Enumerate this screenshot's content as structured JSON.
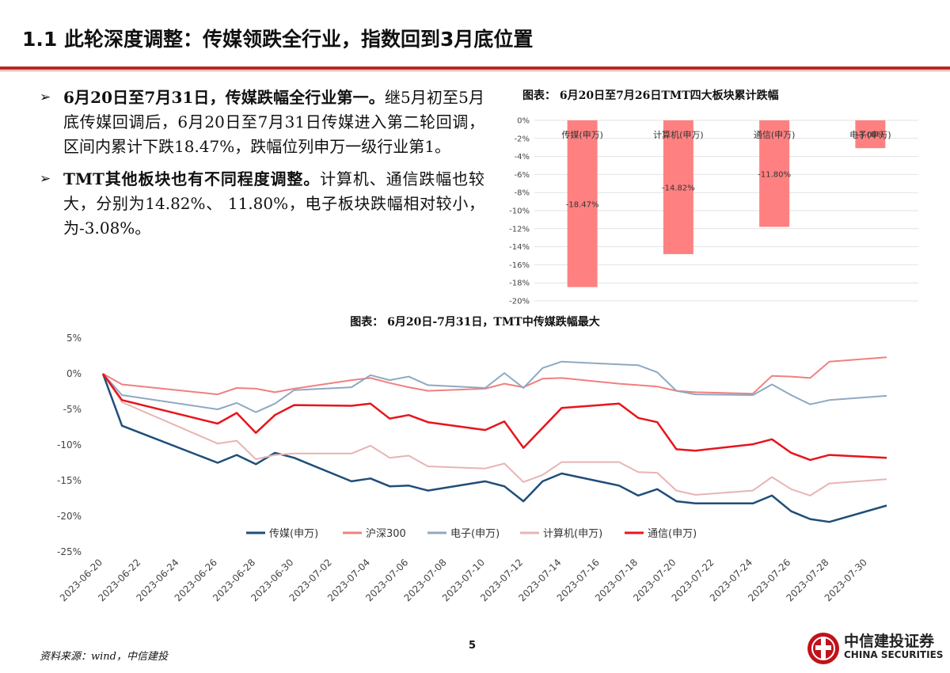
{
  "page": {
    "title": "1.1 此轮深度调整：传媒领跌全行业，指数回到3月底位置",
    "footer_source": "资料来源：wind，中信建投",
    "page_number": "5",
    "logo_cn": "中信建投证券",
    "logo_en": "CHINA SECURITIES",
    "brand_color": "#b22b25"
  },
  "bullets": [
    {
      "lead": "6月20日至7月31日，传媒跌幅全行业第一。",
      "body": "继5月初至5月底传媒回调后，6月20日至7月31日传媒进入第二轮回调，区间内累计下跌18.47%，跌幅位列申万一级行业第1。"
    },
    {
      "lead": "TMT其他板块也有不同程度调整。",
      "body": "计算机、通信跌幅也较大，分别为14.82%、 11.80%，电子板块跌幅相对较小，为-3.08%。"
    }
  ],
  "chart_data": [
    {
      "type": "bar",
      "title": "图表： 6月20日至7月26日TMT四大板块累计跌幅",
      "categories": [
        "传媒(申万)",
        "计算机(申万)",
        "通信(申万)",
        "电子(申万)"
      ],
      "values": [
        -18.47,
        -14.82,
        -11.8,
        -3.08
      ],
      "value_labels": [
        "-18.47%",
        "-14.82%",
        "-11.80%",
        "-3.08%"
      ],
      "ylim": [
        -20,
        0
      ],
      "yticks": [
        "0%",
        "-2%",
        "-4%",
        "-6%",
        "-8%",
        "-10%",
        "-12%",
        "-14%",
        "-16%",
        "-18%",
        "-20%"
      ],
      "bar_color": "#ff8080",
      "grid": true
    },
    {
      "type": "line",
      "title": "图表： 6月20日-7月31日，TMT中传媒跌幅最大",
      "x": [
        "2023-06-20",
        "2023-06-21",
        "2023-06-26",
        "2023-06-27",
        "2023-06-28",
        "2023-06-29",
        "2023-06-30",
        "2023-07-03",
        "2023-07-04",
        "2023-07-05",
        "2023-07-06",
        "2023-07-07",
        "2023-07-10",
        "2023-07-11",
        "2023-07-12",
        "2023-07-13",
        "2023-07-14",
        "2023-07-17",
        "2023-07-18",
        "2023-07-19",
        "2023-07-20",
        "2023-07-21",
        "2023-07-24",
        "2023-07-25",
        "2023-07-26",
        "2023-07-27",
        "2023-07-28",
        "2023-07-31"
      ],
      "xticks": [
        "2023-06-20",
        "2023-06-22",
        "2023-06-24",
        "2023-06-26",
        "2023-06-28",
        "2023-06-30",
        "2023-07-02",
        "2023-07-04",
        "2023-07-06",
        "2023-07-08",
        "2023-07-10",
        "2023-07-12",
        "2023-07-14",
        "2023-07-16",
        "2023-07-18",
        "2023-07-20",
        "2023-07-22",
        "2023-07-24",
        "2023-07-26",
        "2023-07-28",
        "2023-07-30"
      ],
      "yticks": [
        "5%",
        "0%",
        "-5%",
        "-10%",
        "-15%",
        "-20%",
        "-25%"
      ],
      "ylim": [
        -25,
        5
      ],
      "series": [
        {
          "name": "传媒(申万)",
          "color": "#1f4e79",
          "width": 2.5,
          "values": [
            0,
            -7.3,
            -12.5,
            -11.4,
            -12.7,
            -11.1,
            -11.8,
            -15.1,
            -14.7,
            -15.8,
            -15.7,
            -16.4,
            -15.1,
            -15.8,
            -17.9,
            -15.1,
            -14.0,
            -15.7,
            -17.1,
            -16.2,
            -17.9,
            -18.2,
            -18.2,
            -17.1,
            -19.3,
            -20.4,
            -20.8,
            -18.5
          ]
        },
        {
          "name": "沪深300",
          "color": "#f08080",
          "width": 2,
          "values": [
            0,
            -1.5,
            -2.9,
            -2.0,
            -2.1,
            -2.6,
            -2.1,
            -0.9,
            -0.6,
            -1.3,
            -1.9,
            -2.4,
            -2.1,
            -1.4,
            -1.9,
            -0.7,
            -0.6,
            -1.4,
            -1.6,
            -1.8,
            -2.4,
            -2.6,
            -2.8,
            -0.3,
            -0.4,
            -0.6,
            1.7,
            2.3
          ]
        },
        {
          "name": "电子(申万)",
          "color": "#8ea9c1",
          "width": 2,
          "values": [
            0,
            -3.0,
            -5.0,
            -4.1,
            -5.4,
            -4.2,
            -2.3,
            -1.9,
            -0.2,
            -0.9,
            -0.4,
            -1.6,
            -2.0,
            0.1,
            -2.0,
            0.8,
            1.7,
            1.3,
            1.2,
            0.2,
            -2.4,
            -2.9,
            -3.0,
            -1.5,
            -3.0,
            -4.3,
            -3.7,
            -3.1
          ]
        },
        {
          "name": "计算机(申万)",
          "color": "#e8b4b4",
          "width": 2,
          "values": [
            0,
            -4.0,
            -9.8,
            -9.4,
            -12.0,
            -11.4,
            -11.2,
            -11.2,
            -10.1,
            -11.8,
            -11.5,
            -13.0,
            -13.3,
            -12.6,
            -15.2,
            -14.2,
            -12.4,
            -12.4,
            -13.8,
            -13.9,
            -16.4,
            -17.0,
            -16.4,
            -14.5,
            -16.2,
            -17.1,
            -15.4,
            -14.8
          ]
        },
        {
          "name": "通信(申万)",
          "color": "#e8141c",
          "width": 2.5,
          "values": [
            0,
            -3.7,
            -7.0,
            -5.5,
            -8.3,
            -5.8,
            -4.4,
            -4.5,
            -4.2,
            -6.3,
            -5.8,
            -6.8,
            -7.9,
            -6.7,
            -10.4,
            -7.6,
            -4.8,
            -4.2,
            -6.2,
            -6.8,
            -10.6,
            -10.8,
            -9.9,
            -9.2,
            -11.1,
            -12.1,
            -11.4,
            -11.8
          ]
        }
      ],
      "legend_position": "bottom-center"
    }
  ]
}
